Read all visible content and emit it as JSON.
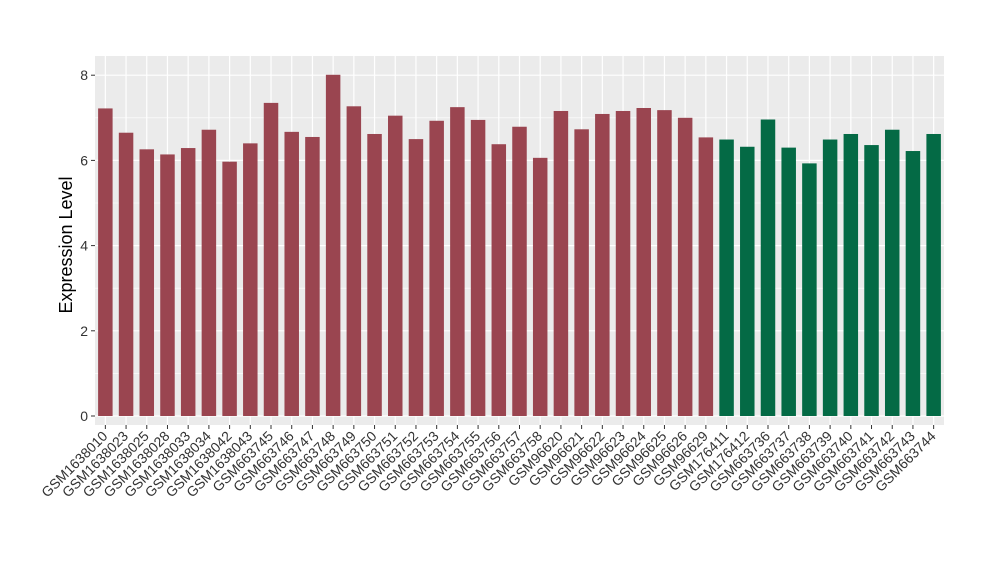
{
  "chart_data": {
    "type": "bar",
    "title": "",
    "xlabel": "",
    "ylabel": "Expression Level",
    "ylim": [
      0,
      8.4
    ],
    "yticks": [
      0,
      2,
      4,
      6,
      8
    ],
    "grid": true,
    "legend": "none",
    "colors": {
      "group1": "#9a4550",
      "group2": "#046a45",
      "panel": "#ebebeb",
      "grid": "#ffffff"
    },
    "categories": [
      "GSM1638010",
      "GSM1638023",
      "GSM1638025",
      "GSM1638028",
      "GSM1638033",
      "GSM1638034",
      "GSM1638042",
      "GSM1638043",
      "GSM663745",
      "GSM663746",
      "GSM663747",
      "GSM663748",
      "GSM663749",
      "GSM663750",
      "GSM663751",
      "GSM663752",
      "GSM663753",
      "GSM663754",
      "GSM663755",
      "GSM663756",
      "GSM663757",
      "GSM663758",
      "GSM96620",
      "GSM96621",
      "GSM96622",
      "GSM96623",
      "GSM96624",
      "GSM96625",
      "GSM96626",
      "GSM96629",
      "GSM176411",
      "GSM176412",
      "GSM663736",
      "GSM663737",
      "GSM663738",
      "GSM663739",
      "GSM663740",
      "GSM663741",
      "GSM663742",
      "GSM663743",
      "GSM663744"
    ],
    "values": [
      7.22,
      6.65,
      6.26,
      6.14,
      6.29,
      6.72,
      5.97,
      6.4,
      7.35,
      6.67,
      6.55,
      8.01,
      7.27,
      6.62,
      7.05,
      6.5,
      6.93,
      7.25,
      6.95,
      6.38,
      6.79,
      6.06,
      7.16,
      6.73,
      7.09,
      7.16,
      7.23,
      7.18,
      7.0,
      6.54,
      6.49,
      6.32,
      6.96,
      6.3,
      5.93,
      6.49,
      6.62,
      6.36,
      6.72,
      6.22,
      6.62
    ],
    "groups": [
      1,
      1,
      1,
      1,
      1,
      1,
      1,
      1,
      1,
      1,
      1,
      1,
      1,
      1,
      1,
      1,
      1,
      1,
      1,
      1,
      1,
      1,
      1,
      1,
      1,
      1,
      1,
      1,
      1,
      1,
      2,
      2,
      2,
      2,
      2,
      2,
      2,
      2,
      2,
      2,
      2
    ]
  }
}
